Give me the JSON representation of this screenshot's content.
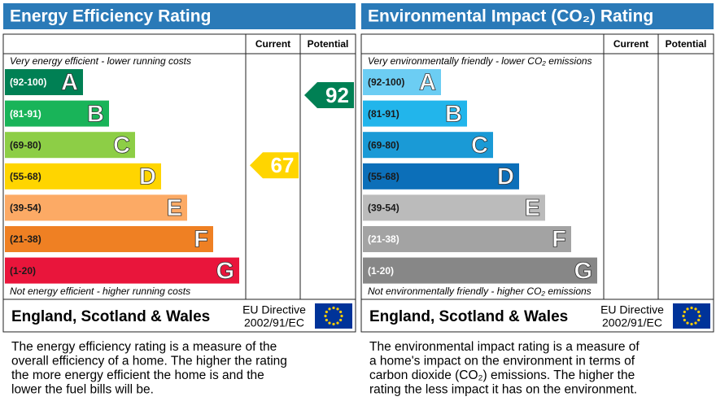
{
  "panels": [
    {
      "title": "Energy Efficiency Rating",
      "header": {
        "current": "Current",
        "potential": "Potential"
      },
      "top_note": "Very energy efficient - lower running costs",
      "bottom_note": "Not energy efficient - higher running costs",
      "bands": [
        {
          "range": "(92-100)",
          "letter": "A",
          "color": "#008054",
          "text_color": "#ffffff"
        },
        {
          "range": "(81-91)",
          "letter": "B",
          "color": "#19b459",
          "text_color": "#ffffff"
        },
        {
          "range": "(69-80)",
          "letter": "C",
          "color": "#8dce46",
          "text_color": "#1a1a1a"
        },
        {
          "range": "(55-68)",
          "letter": "D",
          "color": "#ffd500",
          "text_color": "#1a1a1a"
        },
        {
          "range": "(39-54)",
          "letter": "E",
          "color": "#fcaa65",
          "text_color": "#1a1a1a"
        },
        {
          "range": "(21-38)",
          "letter": "F",
          "color": "#ef8023",
          "text_color": "#1a1a1a"
        },
        {
          "range": "(1-20)",
          "letter": "G",
          "color": "#e9153b",
          "text_color": "#1a1a1a"
        }
      ],
      "current": {
        "value": 67,
        "color": "#ffd500"
      },
      "potential": {
        "value": 92,
        "color": "#008054"
      },
      "footer": {
        "region": "England, Scotland & Wales",
        "directive": [
          "EU Directive",
          "2002/91/EC"
        ]
      },
      "description": [
        "The energy efficiency rating is a measure of the",
        "overall efficiency of a home. The higher the rating",
        "the more energy efficient the home is and the",
        "lower the fuel bills will be."
      ]
    },
    {
      "title": "Environmental Impact (CO₂) Rating",
      "header": {
        "current": "Current",
        "potential": "Potential"
      },
      "top_note": "Very environmentally friendly - lower CO₂ emissions",
      "bottom_note": "Not environmentally friendly - higher CO₂ emissions",
      "bands": [
        {
          "range": "(92-100)",
          "letter": "A",
          "color": "#6ccdf3",
          "text_color": "#1a1a1a"
        },
        {
          "range": "(81-91)",
          "letter": "B",
          "color": "#22b5eb",
          "text_color": "#1a1a1a"
        },
        {
          "range": "(69-80)",
          "letter": "C",
          "color": "#1a9ad6",
          "text_color": "#1a1a1a"
        },
        {
          "range": "(55-68)",
          "letter": "D",
          "color": "#0c6fb9",
          "text_color": "#1a1a1a"
        },
        {
          "range": "(39-54)",
          "letter": "E",
          "color": "#bbbbbb",
          "text_color": "#1a1a1a"
        },
        {
          "range": "(21-38)",
          "letter": "F",
          "color": "#a3a3a3",
          "text_color": "#ffffff"
        },
        {
          "range": "(1-20)",
          "letter": "G",
          "color": "#878787",
          "text_color": "#ffffff"
        }
      ],
      "footer": {
        "region": "England, Scotland & Wales",
        "directive": [
          "EU Directive",
          "2002/91/EC"
        ]
      },
      "description": [
        "The environmental impact rating is a measure of",
        "a home's impact on the environment in terms of",
        "carbon dioxide (CO₂) emissions. The higher the",
        "rating the less impact it has on the environment."
      ]
    }
  ]
}
